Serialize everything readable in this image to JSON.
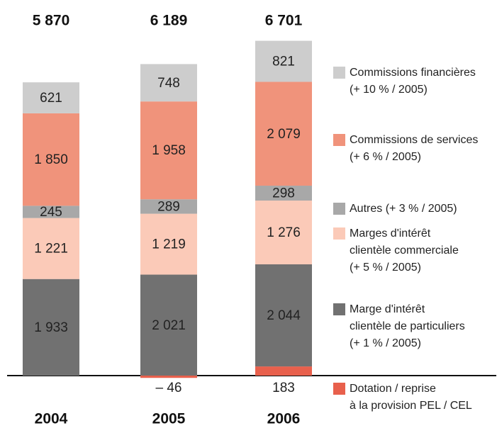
{
  "chart_data": {
    "type": "stacked_bar",
    "categories": [
      "2004",
      "2005",
      "2006"
    ],
    "totals": [
      5870,
      6189,
      6701
    ],
    "total_labels": [
      "5 870",
      "6 189",
      "6 701"
    ],
    "series": [
      {
        "name": "Dotation / reprise\nà la provision PEL / CEL",
        "color": "#e8604c",
        "values": [
          null,
          -46,
          183
        ],
        "value_labels": [
          null,
          "– 46",
          "183"
        ]
      },
      {
        "name": "Marge d'intérêt\nclientèle de particuliers\n(+ 1 % / 2005)",
        "color": "#717171",
        "values": [
          1933,
          2021,
          2044
        ],
        "value_labels": [
          "1 933",
          "2 021",
          "2 044"
        ]
      },
      {
        "name": "Marges d'intérêt\nclientèle commerciale\n(+ 5 % / 2005)",
        "color": "#fbcab8",
        "values": [
          1221,
          1219,
          1276
        ],
        "value_labels": [
          "1 221",
          "1 219",
          "1 276"
        ]
      },
      {
        "name": "Autres (+ 3 % / 2005)",
        "color": "#a8a8a8",
        "values": [
          245,
          289,
          298
        ]
      },
      {
        "name": "Commissions de services\n(+ 6 % / 2005)",
        "color": "#f0937b",
        "values": [
          1850,
          1958,
          2079
        ],
        "value_labels": [
          "1 850",
          "1 958",
          "2 079"
        ]
      },
      {
        "name": "Commissions financières\n(+ 10 % / 2005)",
        "color": "#cdcdcd",
        "values": [
          621,
          748,
          821
        ]
      }
    ]
  }
}
